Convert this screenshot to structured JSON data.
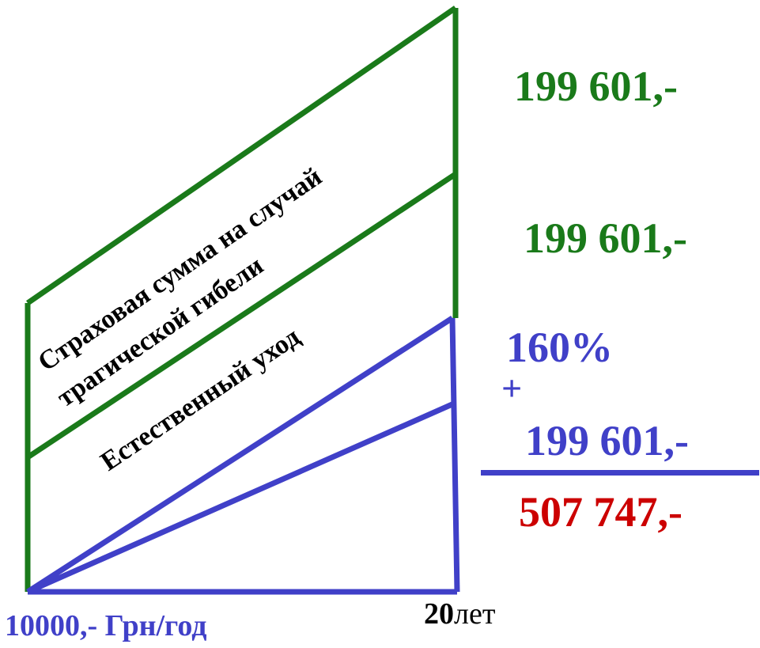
{
  "diagram": {
    "labels": {
      "accident_line1": "Страховая сумма на случай",
      "accident_line2": "трагической гибели",
      "natural": "Естественный уход"
    },
    "amounts": {
      "top": "199 601,-",
      "middle": "199 601,-",
      "percent": "160%",
      "plus": "+",
      "bonus": "199 601,-",
      "total": "507 747,-"
    },
    "axis": {
      "premium": "10000,- Грн/год",
      "years_number": "20",
      "years_unit": "лет"
    },
    "colors": {
      "green": "#1a7a1a",
      "blue": "#4040c8",
      "red": "#cc0000",
      "black": "#000000"
    }
  }
}
